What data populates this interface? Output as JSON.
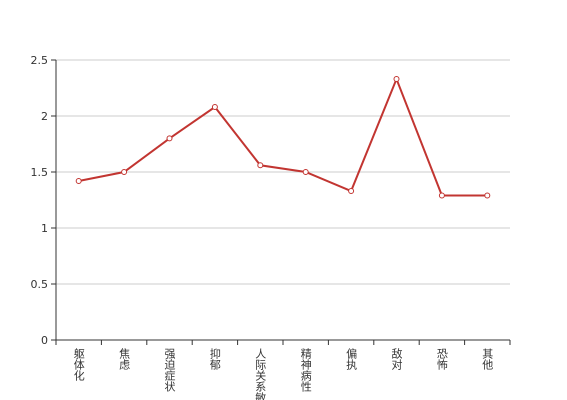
{
  "chart_data": {
    "type": "line",
    "categories": [
      "躯体化",
      "焦虑",
      "强迫症状",
      "抑郁",
      "人际关系敏感",
      "精神病性",
      "偏执",
      "敌对",
      "恐怖",
      "其他"
    ],
    "series": [
      {
        "color": "#c23531",
        "values": [
          1.42,
          1.5,
          1.8,
          2.08,
          1.56,
          1.5,
          1.33,
          2.33,
          1.29,
          1.29
        ]
      }
    ],
    "ylim": [
      0,
      2.5
    ],
    "yticks": [
      0,
      0.5,
      1,
      1.5,
      2,
      2.5
    ],
    "grid": true
  }
}
